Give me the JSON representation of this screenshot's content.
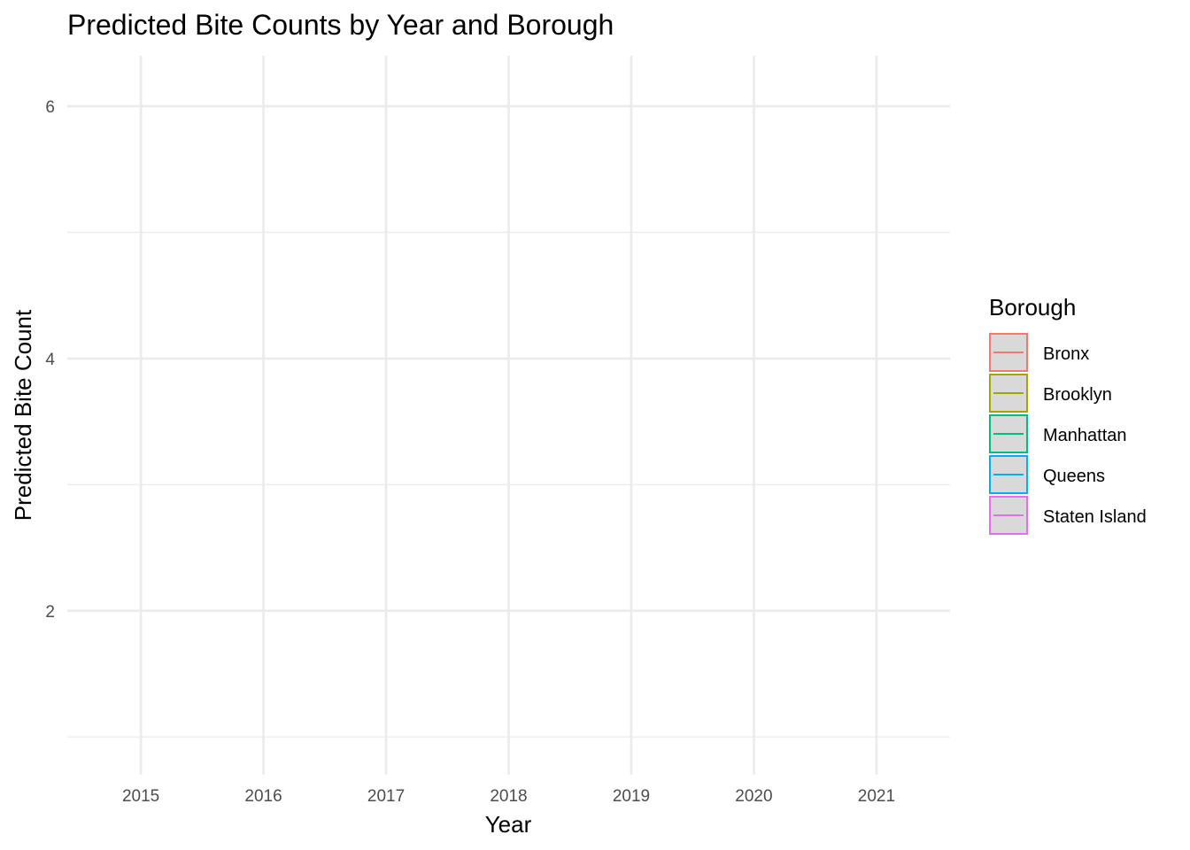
{
  "chart_data": {
    "type": "line",
    "title": "Predicted Bite Counts by Year and Borough",
    "xlabel": "Year",
    "ylabel": "Predicted Bite Count",
    "x": [
      2015,
      2016,
      2017,
      2018,
      2019,
      2020,
      2021
    ],
    "xlim": [
      2014.4,
      2021.6
    ],
    "ylim": [
      0.7,
      6.4
    ],
    "y_ticks": [
      2,
      4,
      6
    ],
    "y_minor_ticks": [
      1,
      3,
      5
    ],
    "grid": true,
    "legend": {
      "title": "Borough",
      "placement": "right",
      "entries": [
        {
          "name": "Bronx",
          "color": "#F8766D"
        },
        {
          "name": "Brooklyn",
          "color": "#A3A500"
        },
        {
          "name": "Manhattan",
          "color": "#00BF7D"
        },
        {
          "name": "Queens",
          "color": "#00B0F6"
        },
        {
          "name": "Staten Island",
          "color": "#E76BF3"
        }
      ]
    },
    "series": []
  }
}
